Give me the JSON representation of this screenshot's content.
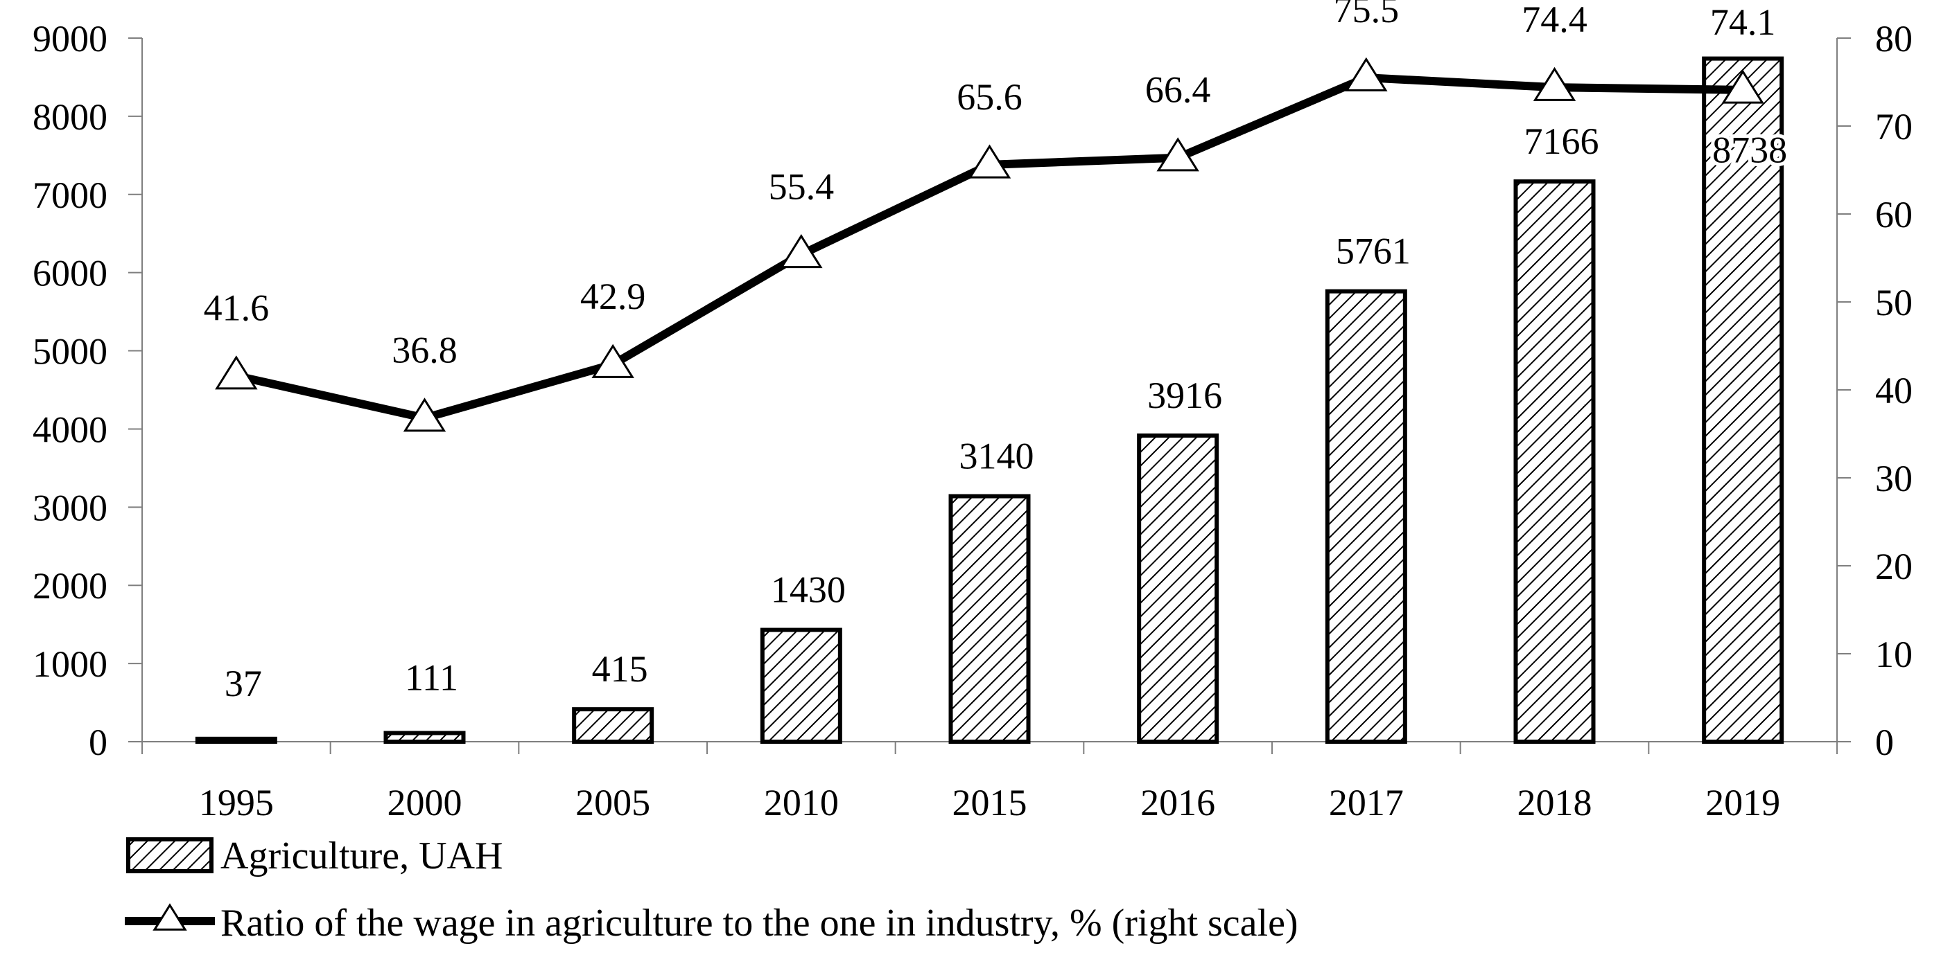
{
  "chart_data": {
    "type": "bar+line",
    "categories": [
      "1995",
      "2000",
      "2005",
      "2010",
      "2015",
      "2016",
      "2017",
      "2018",
      "2019"
    ],
    "series": [
      {
        "name": "Agriculture, UAH",
        "kind": "bar",
        "axis": "left",
        "pattern": "diagonal-hatch",
        "values": [
          37,
          111,
          415,
          1430,
          3140,
          3916,
          5761,
          7166,
          8738
        ],
        "labels": [
          "37",
          "111",
          "415",
          "1430",
          "3140",
          "3916",
          "5761",
          "7166",
          "8738"
        ]
      },
      {
        "name": "Ratio of the wage in agriculture to the one in industry, % (right scale)",
        "kind": "line",
        "axis": "right",
        "marker": "triangle",
        "values": [
          41.6,
          36.8,
          42.9,
          55.4,
          65.6,
          66.4,
          75.5,
          74.4,
          74.1
        ],
        "labels": [
          "41.6",
          "36.8",
          "42.9",
          "55.4",
          "65.6",
          "66.4",
          "75.5",
          "74.4",
          "74.1"
        ]
      }
    ],
    "y_left": {
      "range": [
        0,
        9000
      ],
      "ticks": [
        "0",
        "1000",
        "2000",
        "3000",
        "4000",
        "5000",
        "6000",
        "7000",
        "8000",
        "9000"
      ]
    },
    "y_right": {
      "range": [
        0,
        80
      ],
      "ticks": [
        "0",
        "10",
        "20",
        "30",
        "40",
        "50",
        "60",
        "70",
        "80"
      ]
    },
    "title": "",
    "xlabel": "",
    "grid": false,
    "legend_position": "bottom-left",
    "colors": {
      "ink": "#000000",
      "background": "#ffffff",
      "axis": "#7f7f7f"
    }
  }
}
